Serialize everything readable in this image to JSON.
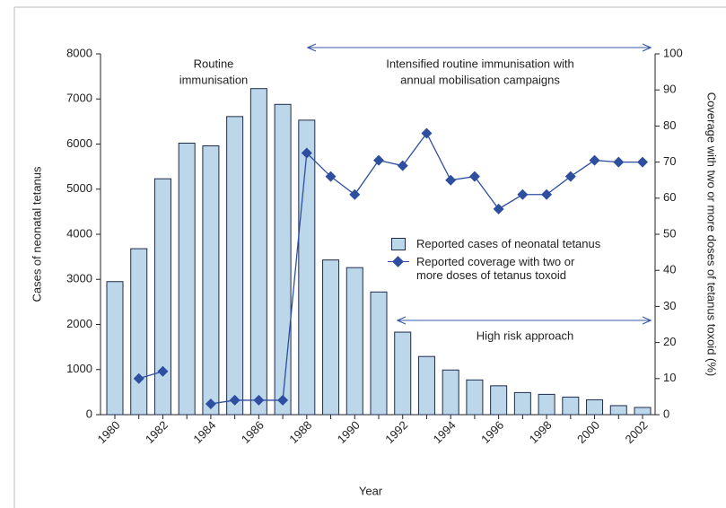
{
  "chart_data": {
    "type": "bar_line",
    "categories": [
      "1980",
      null,
      "1982",
      null,
      "1984",
      null,
      "1986",
      null,
      "1988",
      null,
      "1990",
      null,
      "1992",
      null,
      "1994",
      null,
      "1996",
      null,
      "1998",
      null,
      "2000",
      null,
      "2002"
    ],
    "series": [
      {
        "name": "Reported cases of neonatal tetanus",
        "type": "bar",
        "color": "#bcd6ea",
        "edge": "#1f2b4a",
        "values": [
          2950,
          3680,
          5230,
          6020,
          5960,
          6610,
          7230,
          6880,
          6530,
          3430,
          3260,
          2720,
          1830,
          1290,
          990,
          770,
          640,
          490,
          450,
          390,
          330,
          200,
          160
        ]
      },
      {
        "name": "Reported coverage with two or more doses of tetanus toxoid",
        "type": "line",
        "axis": "y2",
        "color": "#2e4fa0",
        "values": [
          null,
          10,
          12,
          null,
          3,
          4,
          4,
          4,
          72.5,
          66,
          61,
          70.5,
          69,
          78,
          65,
          66,
          57,
          61,
          61,
          66,
          70.5,
          70,
          70
        ]
      }
    ],
    "xlabel": "Year",
    "ylabel": "Cases of neonatal tetanus",
    "y2label": "Coverage with two or more doses of tetanus toxoid (%)",
    "ylim": [
      0,
      8000
    ],
    "yticks": [
      0,
      1000,
      2000,
      3000,
      4000,
      5000,
      6000,
      7000,
      8000
    ],
    "y2lim": [
      0,
      100
    ],
    "y2ticks": [
      0,
      10,
      20,
      30,
      40,
      50,
      60,
      70,
      80,
      90,
      100
    ],
    "annotations": [
      {
        "lines": [
          "Routine",
          "immunisation"
        ]
      },
      {
        "lines": [
          "Intensified routine immunisation with",
          "annual mobilisation campaigns"
        ]
      },
      {
        "lines": [
          "High risk approach"
        ]
      }
    ]
  }
}
